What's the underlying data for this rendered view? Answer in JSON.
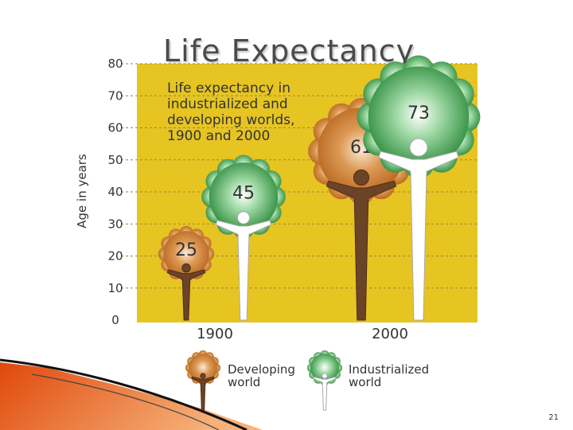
{
  "slide": {
    "title": "Life Expectancy",
    "number": "21"
  },
  "chart_data": {
    "type": "bar",
    "title": "Life expectancy in industrialized and developing worlds, 1900 and 2000",
    "title_lines": [
      "Life expectancy in",
      "industrialized and",
      "developing worlds,",
      "1900 and 2000"
    ],
    "ylabel": "Age in years",
    "xlabel": "",
    "ylim": [
      0,
      80
    ],
    "yticks": [
      0,
      10,
      20,
      30,
      40,
      50,
      60,
      70,
      80
    ],
    "categories": [
      "1900",
      "2000"
    ],
    "series": [
      {
        "name": "Developing world",
        "values": [
          25,
          61
        ],
        "color": "#b8661e"
      },
      {
        "name": "Industrialized world",
        "values": [
          45,
          73
        ],
        "color": "#2e8b3c"
      }
    ],
    "legend": {
      "position": "bottom",
      "items": [
        {
          "lines": [
            "Developing",
            "world"
          ]
        },
        {
          "lines": [
            "Industrialized",
            "world"
          ]
        }
      ]
    },
    "background_color": "#e6c422",
    "grid": true
  }
}
